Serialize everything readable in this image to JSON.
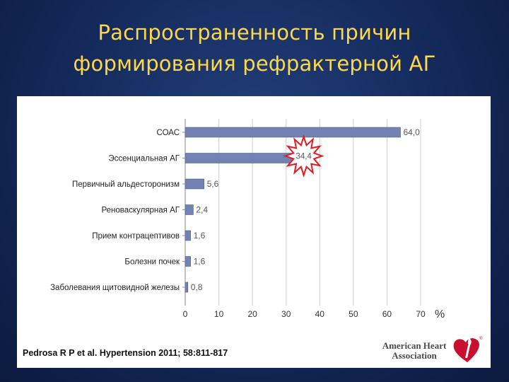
{
  "slide": {
    "title_line1": "Распространенность причин",
    "title_line2": "формирования рефрактерной АГ",
    "citation": "Pedrosa R P et al. Hypertension 2011; 58:811-817",
    "logo_line1": "American Heart",
    "logo_line2": "Association",
    "logo_icon": "heart-torch-icon"
  },
  "colors": {
    "title": "#ffd84a",
    "bar": "#7283b3",
    "bar_edge": "#4b5c8e",
    "highlight_burst": "#e31b23",
    "logo_red": "#c8102e"
  },
  "chart_data": {
    "type": "bar",
    "orientation": "horizontal",
    "categories": [
      "СОАС",
      "Эссенциальная АГ",
      "Первичный альдесторонизм",
      "Реноваскулярная АГ",
      "Прием контрацептивов",
      "Болезни почек",
      "Заболевания щитовидной железы"
    ],
    "values": [
      64.0,
      34.4,
      5.6,
      2.4,
      1.6,
      1.6,
      0.8
    ],
    "value_labels": [
      "64,0",
      "34,4",
      "5,6",
      "2,4",
      "1,6",
      "1,6",
      "0,8"
    ],
    "highlighted_category": "Эссенциальная АГ",
    "xlim": [
      0,
      70
    ],
    "xticks": [
      0,
      10,
      20,
      30,
      40,
      50,
      60,
      70
    ],
    "x_unit": "%",
    "grid": "vertical"
  }
}
